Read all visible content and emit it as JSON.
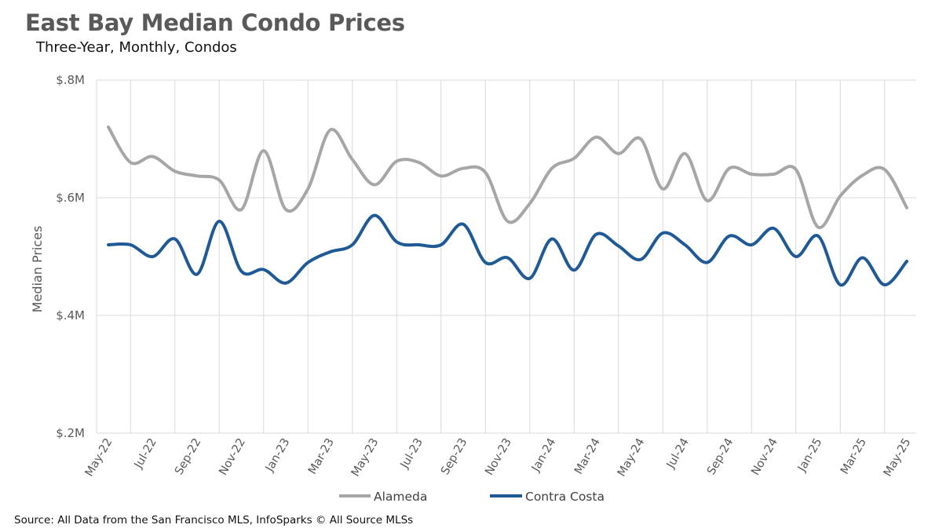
{
  "title": "East Bay Median Condo Prices",
  "subtitle": "Three-Year, Monthly, Condos",
  "source": "Source: All Data from the San Francisco MLS, InfoSparks © All Source MLSs",
  "chart_data": {
    "type": "line",
    "ylabel": "Median Prices",
    "xlabel": "",
    "ylim": [
      200000,
      800000
    ],
    "yticks": [
      200000,
      400000,
      600000,
      800000
    ],
    "ytick_labels": [
      "$.2M",
      "$.4M",
      "$.6M",
      "$.8M"
    ],
    "grid": "vertical and horizontal",
    "legend": "bottom",
    "categories": [
      "May-22",
      "Jun-22",
      "Jul-22",
      "Aug-22",
      "Sep-22",
      "Oct-22",
      "Nov-22",
      "Dec-22",
      "Jan-23",
      "Feb-23",
      "Mar-23",
      "Apr-23",
      "May-23",
      "Jun-23",
      "Jul-23",
      "Aug-23",
      "Sep-23",
      "Oct-23",
      "Nov-23",
      "Dec-23",
      "Jan-24",
      "Feb-24",
      "Mar-24",
      "Apr-24",
      "May-24",
      "Jun-24",
      "Jul-24",
      "Aug-24",
      "Sep-24",
      "Oct-24",
      "Nov-24",
      "Dec-24",
      "Jan-25",
      "Feb-25",
      "Mar-25",
      "Apr-25",
      "May-25"
    ],
    "tick_labels": [
      "May-22",
      "Jul-22",
      "Sep-22",
      "Nov-22",
      "Jan-23",
      "Mar-23",
      "May-23",
      "Jul-23",
      "Sep-23",
      "Nov-23",
      "Jan-24",
      "Mar-24",
      "May-24",
      "Jul-24",
      "Sep-24",
      "Nov-24",
      "Jan-25",
      "Mar-25",
      "May-25"
    ],
    "series": [
      {
        "name": "Alameda",
        "color": "#A6A6A6",
        "values": [
          720000,
          660000,
          670000,
          645000,
          637000,
          630000,
          580000,
          680000,
          580000,
          615000,
          715000,
          665000,
          622000,
          662000,
          660000,
          637000,
          650000,
          643000,
          560000,
          590000,
          650000,
          667000,
          703000,
          675000,
          700000,
          615000,
          675000,
          595000,
          650000,
          640000,
          640000,
          648000,
          550000,
          603000,
          638000,
          648000,
          583000
        ]
      },
      {
        "name": "Contra Costa",
        "color": "#1F5A96",
        "values": [
          520000,
          520000,
          500000,
          530000,
          470000,
          560000,
          475000,
          478000,
          455000,
          490000,
          508000,
          520000,
          570000,
          525000,
          520000,
          520000,
          555000,
          490000,
          498000,
          463000,
          530000,
          477000,
          538000,
          518000,
          495000,
          540000,
          520000,
          490000,
          535000,
          520000,
          548000,
          500000,
          535000,
          452000,
          498000,
          452000,
          492000
        ]
      }
    ]
  }
}
